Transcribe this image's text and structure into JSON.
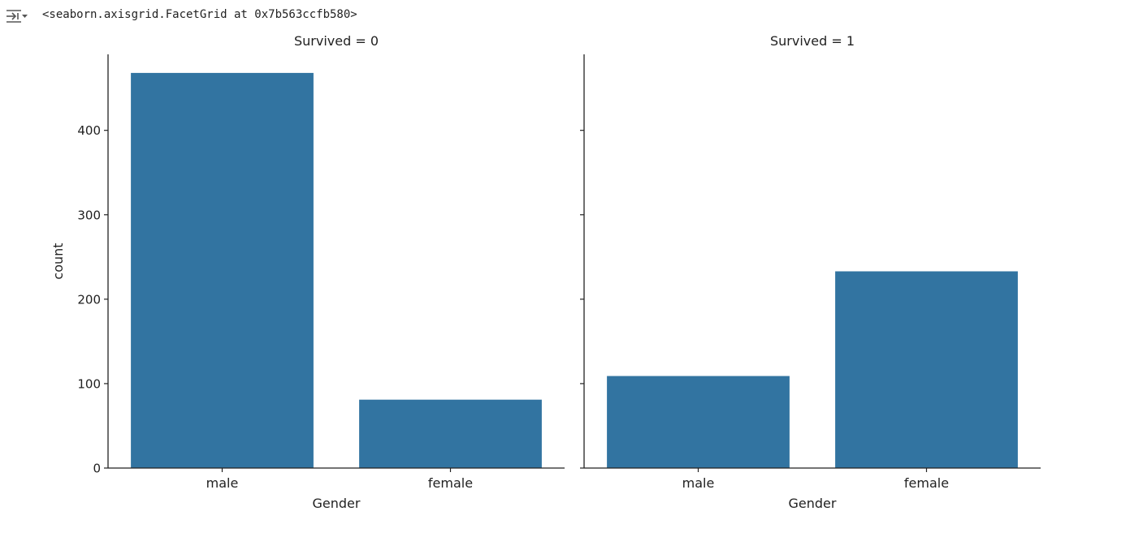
{
  "output": {
    "toggle_icon": "output-collapse-icon",
    "text": "<seaborn.axisgrid.FacetGrid at 0x7b563ccfb580>"
  },
  "chart_data": {
    "type": "bar",
    "ylabel": "count",
    "ylim": [
      0,
      490
    ],
    "yticks": [
      0,
      100,
      200,
      300,
      400
    ],
    "bar_color": "#3274a1",
    "facets": [
      {
        "title": "Survived = 0",
        "xlabel": "Gender",
        "categories": [
          "male",
          "female"
        ],
        "values": [
          468,
          81
        ]
      },
      {
        "title": "Survived = 1",
        "xlabel": "Gender",
        "categories": [
          "male",
          "female"
        ],
        "values": [
          109,
          233
        ]
      }
    ]
  }
}
